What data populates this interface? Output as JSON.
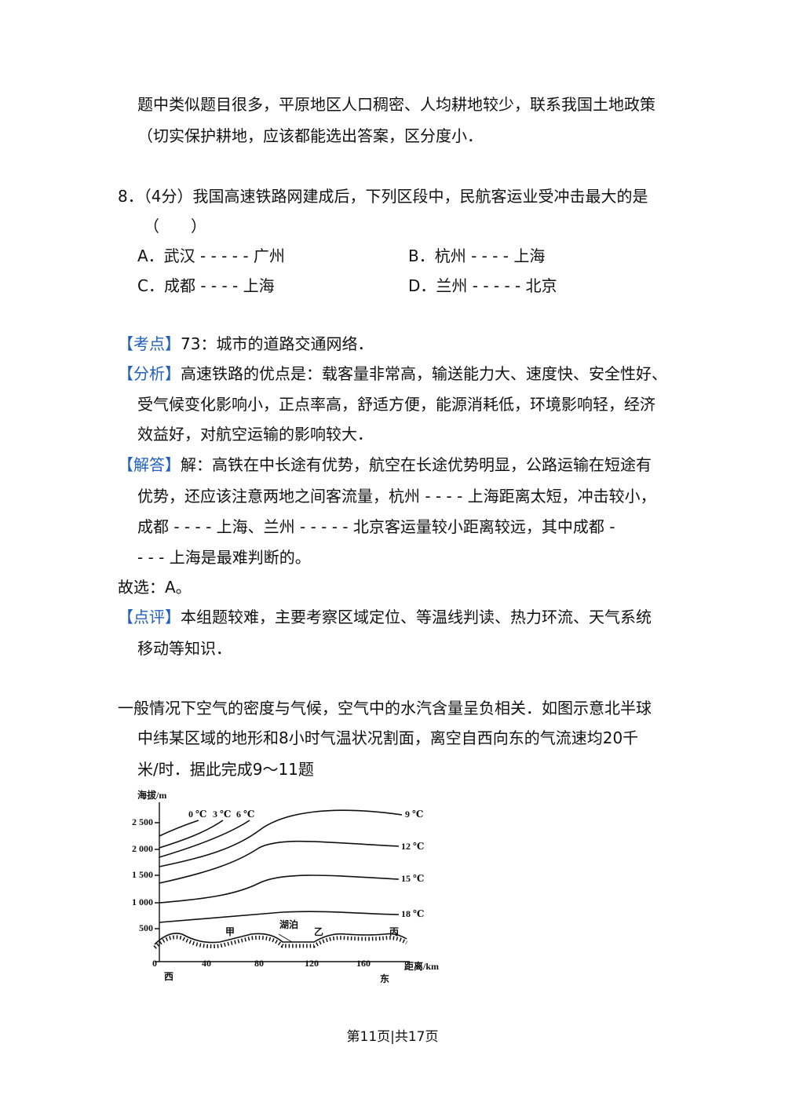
{
  "intro": {
    "lines": [
      "题中类似题目很多，平原地区人口稠密、人均耕地较少，联系我国土地政策",
      "（切实保护耕地，应该都能选出答案，区分度小．"
    ]
  },
  "question": {
    "lines": [
      "8．（4分）我国高速铁路网建成后，下列区段中，民航客运业受冲击最大的是",
      "（　　）"
    ],
    "options": [
      "A．武汉 - - - - - 广州",
      "B．杭州 - - - - 上海",
      "C．成都 - - - - 上海",
      "D．兰州 - - - - - 北京"
    ]
  },
  "kaodian": {
    "label": "【考点】",
    "lines": [
      "73：城市的道路交通网络．"
    ]
  },
  "fenxi": {
    "label": "【分析】",
    "lines": [
      "高速铁路的优点是：载客量非常高，输送能力大、速度快、安全性好、",
      "受气候变化影响小，正点率高，舒适方便，能源消耗低，环境影响轻，经济",
      "效益好，对航空运输的影响较大．"
    ]
  },
  "jieda": {
    "label": "【解答】",
    "lines": [
      "解：高铁在中长途有优势，航空在长途优势明显，公路运输在短途有",
      "优势，还应该注意两地之间客流量，杭州 - - - - 上海距离太短，冲击较小，",
      "成都 - - - - 上海、兰州 - - - - - 北京客运量较小距离较远，其中成都 -",
      "- - - 上海是最难判断的。"
    ]
  },
  "answer": "故选：A。",
  "dianping": {
    "label": "【点评】",
    "lines": [
      "本组题较难，主要考察区域定位、等温线判读、热力环流、天气系统",
      "移动等知识．"
    ]
  },
  "passage": {
    "lines": [
      "一般情况下空气的密度与气候，空气中的水汽含量呈负相关．如图示意北半球",
      "中纬某区域的地形和8小时气温状况割面，离空自西向东的气流速均20千",
      "米/时．据此完成9～11题"
    ]
  },
  "figure": {
    "y_axis_label": "海拔/m",
    "y_ticks": [
      "2 500",
      "2 000",
      "1 500",
      "1 000",
      "500"
    ],
    "x_ticks": [
      "0",
      "40",
      "80",
      "120",
      "160"
    ],
    "x_axis_label": "距离/km",
    "west": "西",
    "east": "东",
    "isotherms": [
      "0 ℃",
      "3 ℃",
      "6 ℃",
      "9 ℃",
      "12 ℃",
      "15 ℃",
      "18 ℃"
    ],
    "places": [
      "甲",
      "湖泊",
      "乙",
      "丙"
    ]
  },
  "footer": "第11页|共17页"
}
